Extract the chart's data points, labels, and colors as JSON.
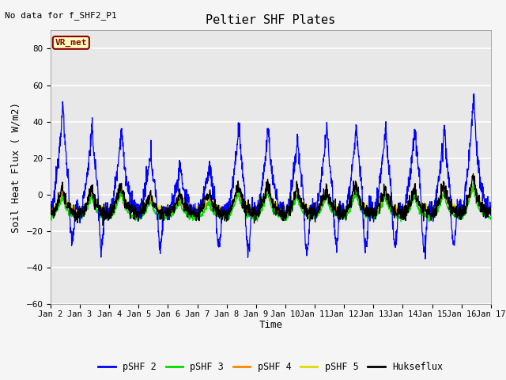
{
  "title": "Peltier SHF Plates",
  "ylabel": "Soil Heat Flux ( W/m2)",
  "xlabel": "Time",
  "annotation_text": "No data for f_SHF2_P1",
  "vr_met_label": "VR_met",
  "ylim": [
    -60,
    90
  ],
  "yticks": [
    -60,
    -40,
    -20,
    0,
    20,
    40,
    60,
    80
  ],
  "xlim": [
    2,
    17
  ],
  "xtick_positions": [
    2,
    3,
    4,
    5,
    6,
    7,
    8,
    9,
    10,
    11,
    12,
    13,
    14,
    15,
    16,
    17
  ],
  "xtick_labels": [
    "Jan 2",
    "Jan 3",
    "Jan 4",
    "Jan 5",
    "Jan 6",
    "Jan 7",
    "Jan 8",
    "Jan 9",
    "Jan 10",
    "Jan 11",
    "Jan 12",
    "Jan 13",
    "Jan 14",
    "Jan 15",
    "Jan 16",
    "Jan 17"
  ],
  "legend_entries": [
    "pSHF 2",
    "pSHF 3",
    "pSHF 4",
    "pSHF 5",
    "Hukseflux"
  ],
  "line_colors": [
    "#0000ff",
    "#00dd00",
    "#ff8800",
    "#dddd00",
    "#000000"
  ],
  "bg_color": "#e8e8e8",
  "fig_bg_color": "#f5f5f5",
  "grid_color": "#ffffff",
  "title_fontsize": 11,
  "label_fontsize": 9,
  "tick_fontsize": 7.5,
  "annot_fontsize": 8,
  "legend_fontsize": 8.5,
  "vr_box_facecolor": "#ffffc0",
  "vr_box_edgecolor": "#8B0000",
  "vr_text_color": "#8B0000"
}
